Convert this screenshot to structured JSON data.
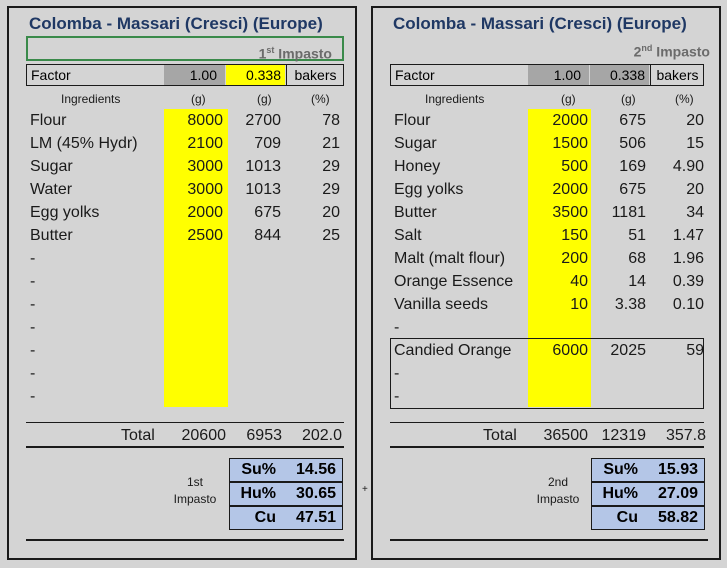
{
  "left": {
    "title": "Colomba - Massari (Cresci) (Europe)",
    "subtitle_num": "1",
    "subtitle_sup": "st",
    "subtitle_word": " Impasto",
    "factor_label": "Factor",
    "factor_a": "1.00",
    "factor_b": "0.338",
    "factor_unit": "bakers",
    "headers": {
      "ingredients": "Ingredients",
      "g1": "(g)",
      "g2": "(g)",
      "pct": "(%)"
    },
    "rows": [
      {
        "name": "Flour",
        "g1": "8000",
        "g2": "2700",
        "pct": "78"
      },
      {
        "name": "LM (45% Hydr)",
        "g1": "2100",
        "g2": "709",
        "pct": "21"
      },
      {
        "name": "Sugar",
        "g1": "3000",
        "g2": "1013",
        "pct": "29"
      },
      {
        "name": "Water",
        "g1": "3000",
        "g2": "1013",
        "pct": "29"
      },
      {
        "name": "Egg yolks",
        "g1": "2000",
        "g2": "675",
        "pct": "20"
      },
      {
        "name": "Butter",
        "g1": "2500",
        "g2": "844",
        "pct": "25"
      },
      {
        "name": "-",
        "g1": "",
        "g2": "",
        "pct": ""
      },
      {
        "name": "-",
        "g1": "",
        "g2": "",
        "pct": ""
      },
      {
        "name": "-",
        "g1": "",
        "g2": "",
        "pct": ""
      },
      {
        "name": "-",
        "g1": "",
        "g2": "",
        "pct": ""
      },
      {
        "name": "-",
        "g1": "",
        "g2": "",
        "pct": ""
      },
      {
        "name": "-",
        "g1": "",
        "g2": "",
        "pct": ""
      },
      {
        "name": "-",
        "g1": "",
        "g2": "",
        "pct": ""
      }
    ],
    "total_label": "Total",
    "total_g1": "20600",
    "total_g2": "6953",
    "total_pct": "202.0",
    "impasto_label_1": "1st",
    "impasto_label_2": "Impasto",
    "stats": [
      {
        "k": "Su%",
        "v": "14.56"
      },
      {
        "k": "Hu%",
        "v": "30.65"
      },
      {
        "k": "Cu",
        "v": "47.51"
      }
    ]
  },
  "right": {
    "title": "Colomba - Massari (Cresci) (Europe)",
    "subtitle_num": "2",
    "subtitle_sup": "nd",
    "subtitle_word": " Impasto",
    "factor_label": "Factor",
    "factor_a": "1.00",
    "factor_b": "0.338",
    "factor_unit": "bakers",
    "headers": {
      "ingredients": "Ingredients",
      "g1": "(g)",
      "g2": "(g)",
      "pct": "(%)"
    },
    "rows": [
      {
        "name": "Flour",
        "g1": "2000",
        "g2": "675",
        "pct": "20"
      },
      {
        "name": "Sugar",
        "g1": "1500",
        "g2": "506",
        "pct": "15"
      },
      {
        "name": "Honey",
        "g1": "500",
        "g2": "169",
        "pct": "4.90"
      },
      {
        "name": "Egg yolks",
        "g1": "2000",
        "g2": "675",
        "pct": "20"
      },
      {
        "name": "Butter",
        "g1": "3500",
        "g2": "1181",
        "pct": "34"
      },
      {
        "name": "Salt",
        "g1": "150",
        "g2": "51",
        "pct": "1.47"
      },
      {
        "name": "Malt (malt flour)",
        "g1": "200",
        "g2": "68",
        "pct": "1.96"
      },
      {
        "name": "Orange Essence",
        "g1": "40",
        "g2": "14",
        "pct": "0.39"
      },
      {
        "name": "Vanilla seeds",
        "g1": "10",
        "g2": "3.38",
        "pct": "0.10"
      },
      {
        "name": "-",
        "g1": "",
        "g2": "",
        "pct": ""
      },
      {
        "name": "Candied Orange",
        "g1": "6000",
        "g2": "2025",
        "pct": "59"
      },
      {
        "name": "-",
        "g1": "",
        "g2": "",
        "pct": ""
      },
      {
        "name": "-",
        "g1": "",
        "g2": "",
        "pct": ""
      }
    ],
    "total_label": "Total",
    "total_g1": "36500",
    "total_g2": "12319",
    "total_pct": "357.8",
    "impasto_label_1": "2nd",
    "impasto_label_2": "Impasto",
    "stats": [
      {
        "k": "Su%",
        "v": "15.93"
      },
      {
        "k": "Hu%",
        "v": "27.09"
      },
      {
        "k": "Cu",
        "v": "58.82"
      }
    ]
  },
  "plus_sign": "+",
  "colors": {
    "highlight": "#ffff00",
    "stat_bg": "#b4c6e7",
    "title": "#1f3864",
    "factor_grey": "#a6a6a6"
  }
}
